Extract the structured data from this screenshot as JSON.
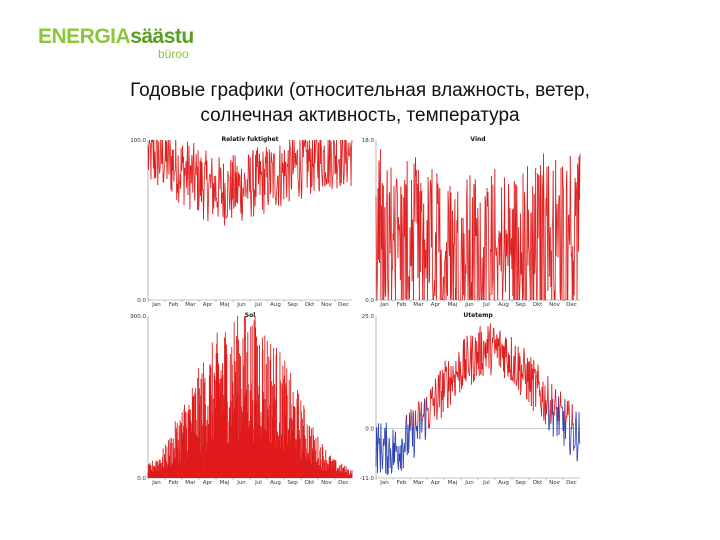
{
  "logo": {
    "part1": "ENERGIA",
    "part2": "säästu",
    "sub": "büroo"
  },
  "slide": {
    "title_line1": "Годовые графики (относительная влажность, ветер,",
    "title_line2": "солнечная активность, температура"
  },
  "colors": {
    "series_main": "#e01b1b",
    "series_negative": "#2a3fb0",
    "logo_light": "#8cc63f",
    "logo_dark": "#5a9e1f"
  },
  "chart_data": [
    {
      "type": "line",
      "title": "Relativ fuktighet",
      "categories": [
        "Jan",
        "Feb",
        "Mar",
        "Apr",
        "Maj",
        "Jun",
        "Jul",
        "Aug",
        "Sep",
        "Okt",
        "Nov",
        "Dec"
      ],
      "ylim": [
        0.0,
        100.0
      ],
      "y_tick_labels": [
        "100.0",
        "0.0"
      ],
      "series": [
        {
          "values": [
            90,
            88,
            80,
            72,
            68,
            70,
            74,
            78,
            84,
            88,
            91,
            92
          ],
          "variability": 22
        }
      ]
    },
    {
      "type": "line",
      "title": "Vind",
      "categories": [
        "Jan",
        "Feb",
        "Mar",
        "Apr",
        "Maj",
        "Jun",
        "Jul",
        "Aug",
        "Sep",
        "Okt",
        "Nov",
        "Dec"
      ],
      "ylim": [
        0.0,
        18.0
      ],
      "y_tick_labels": [
        "18.0",
        "0.0"
      ],
      "series": [
        {
          "values": [
            6.5,
            6.0,
            5.5,
            5.0,
            4.5,
            4.5,
            4.0,
            4.5,
            5.0,
            6.0,
            6.5,
            6.8
          ],
          "variability": 10
        }
      ]
    },
    {
      "type": "line",
      "title": "Sol",
      "categories": [
        "Jan",
        "Feb",
        "Mar",
        "Apr",
        "Maj",
        "Jun",
        "Jul",
        "Aug",
        "Sep",
        "Okt",
        "Nov",
        "Dec"
      ],
      "ylim": [
        0.0,
        900.0
      ],
      "y_tick_labels": [
        "900.0",
        "0.0"
      ],
      "series": [
        {
          "values": [
            60,
            160,
            380,
            560,
            720,
            800,
            770,
            620,
            430,
            220,
            90,
            40
          ],
          "variability": 1
        }
      ]
    },
    {
      "type": "line",
      "title": "Utetemp",
      "categories": [
        "Jan",
        "Feb",
        "Mar",
        "Apr",
        "Maj",
        "Jun",
        "Jul",
        "Aug",
        "Sep",
        "Okt",
        "Nov",
        "Dec"
      ],
      "ylim": [
        -11.0,
        25.0
      ],
      "y_tick_labels": [
        "25.0",
        "0.0",
        "-11.0"
      ],
      "series": [
        {
          "values": [
            -4,
            -5,
            -1,
            5,
            11,
            15,
            18,
            17,
            12,
            7,
            2,
            -2
          ],
          "variability": 6
        }
      ]
    }
  ]
}
